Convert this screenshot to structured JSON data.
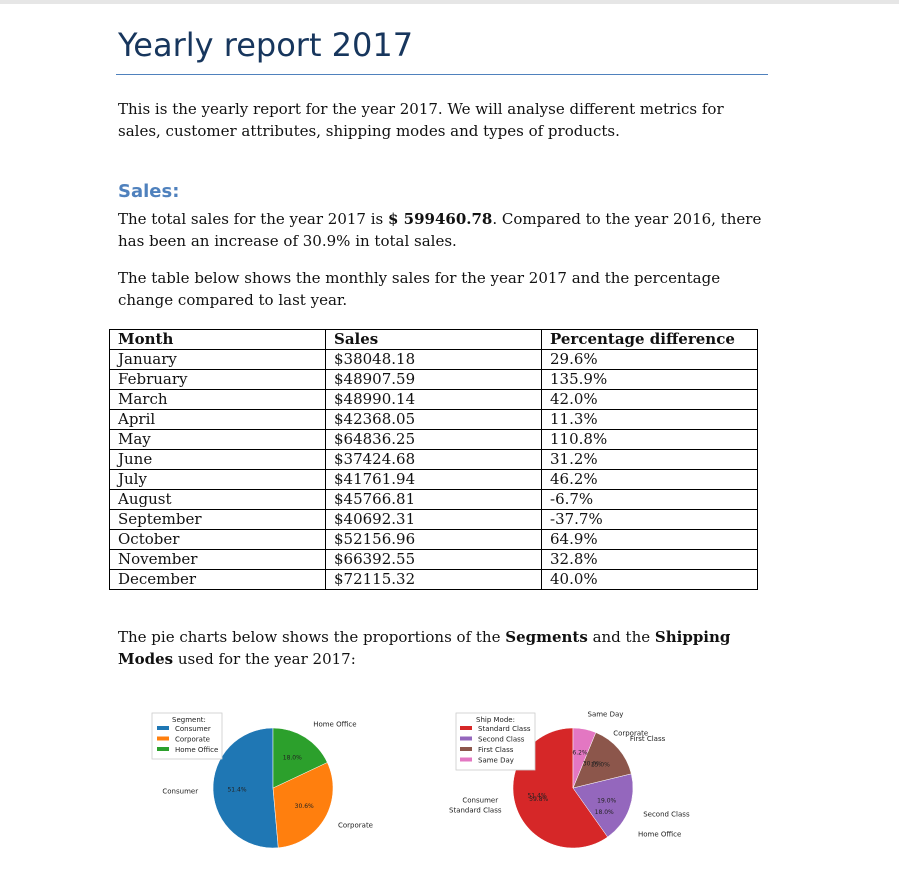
{
  "title": "Yearly report 2017",
  "intro": "This is the yearly report for the year 2017. We will analyse different metrics for sales, customer attributes, shipping modes and types of products.",
  "sales_section": {
    "heading": "Sales:",
    "total_prefix": "The total sales for the year 2017 is ",
    "total_value": "$ 599460.78",
    "total_suffix": ". Compared to the year 2016, there has been an increase of 30.9% in total sales.",
    "table_intro": "The table below shows the monthly sales for the year 2017 and the percentage change compared to last year."
  },
  "table": {
    "headers": [
      "Month",
      "Sales",
      "Percentage difference"
    ],
    "rows": [
      [
        "January",
        "$38048.18",
        "29.6%"
      ],
      [
        "February",
        "$48907.59",
        "135.9%"
      ],
      [
        "March",
        "$48990.14",
        "42.0%"
      ],
      [
        "April",
        "$42368.05",
        "11.3%"
      ],
      [
        "May",
        "$64836.25",
        "110.8%"
      ],
      [
        "June",
        "$37424.68",
        "31.2%"
      ],
      [
        "July",
        "$41761.94",
        "46.2%"
      ],
      [
        "August",
        "$45766.81",
        "-6.7%"
      ],
      [
        "September",
        "$40692.31",
        "-37.7%"
      ],
      [
        "October",
        "$52156.96",
        "64.9%"
      ],
      [
        "November",
        "$66392.55",
        "32.8%"
      ],
      [
        "December",
        "$72115.32",
        "40.0%"
      ]
    ]
  },
  "pie_intro": {
    "p1": "The pie charts below shows the proportions of the ",
    "b1": "Segments",
    "p2": " and the ",
    "b2": "Shipping Modes",
    "p3": " used for the year 2017:"
  },
  "chart_data": [
    {
      "type": "pie",
      "legend_title": "Segment:",
      "legend_placement": "top-left",
      "labels": [
        "Consumer",
        "Corporate",
        "Home Office"
      ],
      "values": [
        51.4,
        30.6,
        18.0
      ],
      "percent_labels": [
        "51.4%",
        "30.6%",
        "18.0%"
      ],
      "colors": [
        "#1f77b4",
        "#ff7f0e",
        "#2ca02c"
      ]
    },
    {
      "type": "pie",
      "legend_title": "Ship Mode:",
      "legend_placement": "top-left",
      "labels": [
        "Standard Class",
        "Second Class",
        "First Class",
        "Same Day"
      ],
      "values": [
        59.8,
        19.0,
        15.0,
        6.2
      ],
      "percent_labels": [
        "59.8%",
        "19.0%",
        "15.0%",
        "6.2%"
      ],
      "colors": [
        "#d62728",
        "#9467bd",
        "#8c564b",
        "#e377c2"
      ],
      "overlay_labels": [
        "Consumer",
        "Home Office",
        "Corporate"
      ],
      "overlay_percent_labels": [
        "51.4%",
        "18.0%",
        "30.6%"
      ]
    }
  ]
}
